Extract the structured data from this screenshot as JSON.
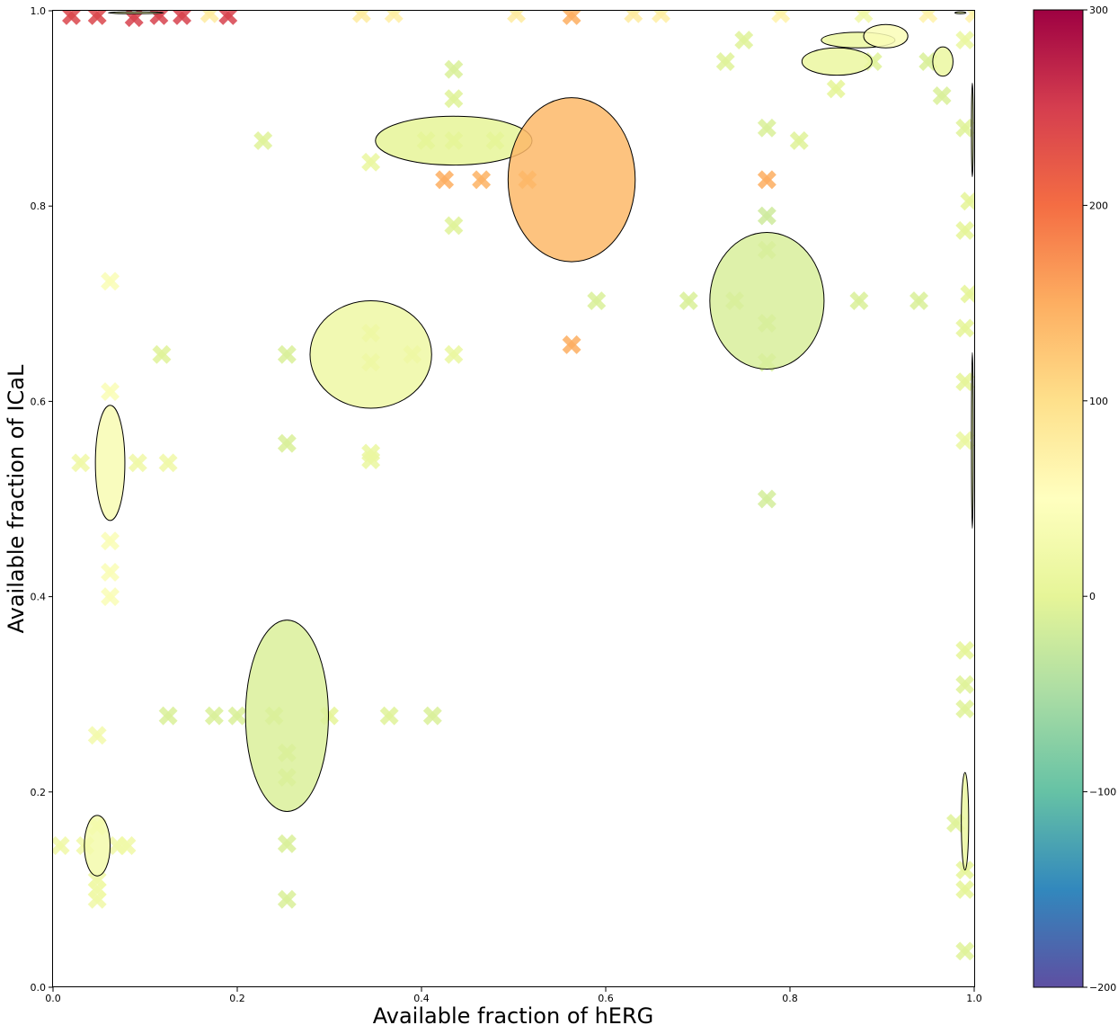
{
  "chart_data": {
    "type": "scatter",
    "xlabel": "Available fraction of hERG",
    "ylabel": "Available fraction of ICaL",
    "xlim": [
      0,
      1
    ],
    "ylim": [
      0,
      1
    ],
    "x_ticks": [
      "0.0",
      "0.2",
      "0.4",
      "0.6",
      "0.8",
      "1.0"
    ],
    "y_ticks": [
      "0.0",
      "0.2",
      "0.4",
      "0.6",
      "0.8",
      "1.0"
    ],
    "grid": false,
    "colorbar": {
      "range": [
        -200,
        300
      ],
      "ticks": [
        "−200",
        "−100",
        "0",
        "100",
        "200",
        "300"
      ],
      "colormap": "Spectral_r"
    },
    "marker": "X",
    "points": [
      {
        "x": 0.02,
        "y": 0.995,
        "v": 240
      },
      {
        "x": 0.048,
        "y": 0.995,
        "v": 240
      },
      {
        "x": 0.088,
        "y": 0.993,
        "v": 245
      },
      {
        "x": 0.115,
        "y": 0.995,
        "v": 245
      },
      {
        "x": 0.14,
        "y": 0.995,
        "v": 245
      },
      {
        "x": 0.19,
        "y": 0.995,
        "v": 245
      },
      {
        "x": 0.17,
        "y": 0.997,
        "v": 80
      },
      {
        "x": 0.335,
        "y": 0.997,
        "v": 80
      },
      {
        "x": 0.37,
        "y": 0.997,
        "v": 75
      },
      {
        "x": 0.503,
        "y": 0.997,
        "v": 80
      },
      {
        "x": 0.563,
        "y": 0.995,
        "v": 150
      },
      {
        "x": 0.63,
        "y": 0.997,
        "v": 80
      },
      {
        "x": 0.66,
        "y": 0.997,
        "v": 75
      },
      {
        "x": 0.79,
        "y": 0.997,
        "v": 70
      },
      {
        "x": 0.88,
        "y": 0.997,
        "v": 20
      },
      {
        "x": 0.95,
        "y": 0.997,
        "v": 70
      },
      {
        "x": 1.0,
        "y": 0.997,
        "v": 70
      },
      {
        "x": 0.435,
        "y": 0.94,
        "v": -10
      },
      {
        "x": 0.435,
        "y": 0.91,
        "v": -5
      },
      {
        "x": 0.405,
        "y": 0.867,
        "v": -5
      },
      {
        "x": 0.435,
        "y": 0.867,
        "v": -5
      },
      {
        "x": 0.48,
        "y": 0.867,
        "v": -5
      },
      {
        "x": 0.228,
        "y": 0.867,
        "v": -5
      },
      {
        "x": 0.345,
        "y": 0.845,
        "v": 10
      },
      {
        "x": 0.425,
        "y": 0.827,
        "v": 150
      },
      {
        "x": 0.465,
        "y": 0.827,
        "v": 145
      },
      {
        "x": 0.515,
        "y": 0.827,
        "v": 145
      },
      {
        "x": 0.435,
        "y": 0.78,
        "v": -5
      },
      {
        "x": 0.563,
        "y": 0.658,
        "v": 150
      },
      {
        "x": 0.59,
        "y": 0.703,
        "v": -10
      },
      {
        "x": 0.69,
        "y": 0.703,
        "v": -10
      },
      {
        "x": 0.74,
        "y": 0.703,
        "v": -10
      },
      {
        "x": 0.775,
        "y": 0.88,
        "v": -10
      },
      {
        "x": 0.775,
        "y": 0.79,
        "v": -20
      },
      {
        "x": 0.775,
        "y": 0.755,
        "v": -15
      },
      {
        "x": 0.775,
        "y": 0.68,
        "v": -15
      },
      {
        "x": 0.775,
        "y": 0.64,
        "v": -15
      },
      {
        "x": 0.775,
        "y": 0.5,
        "v": -15
      },
      {
        "x": 0.775,
        "y": 0.827,
        "v": 150
      },
      {
        "x": 0.81,
        "y": 0.867,
        "v": -5
      },
      {
        "x": 0.875,
        "y": 0.703,
        "v": -10
      },
      {
        "x": 0.94,
        "y": 0.703,
        "v": -10
      },
      {
        "x": 0.73,
        "y": 0.948,
        "v": -5
      },
      {
        "x": 0.75,
        "y": 0.97,
        "v": -5
      },
      {
        "x": 0.85,
        "y": 0.92,
        "v": 0
      },
      {
        "x": 0.89,
        "y": 0.948,
        "v": -5
      },
      {
        "x": 0.95,
        "y": 0.948,
        "v": -10
      },
      {
        "x": 0.965,
        "y": 0.913,
        "v": -10
      },
      {
        "x": 0.99,
        "y": 0.88,
        "v": -5
      },
      {
        "x": 0.99,
        "y": 0.97,
        "v": 10
      },
      {
        "x": 0.995,
        "y": 0.805,
        "v": 0
      },
      {
        "x": 0.99,
        "y": 0.775,
        "v": 0
      },
      {
        "x": 0.995,
        "y": 0.71,
        "v": 0
      },
      {
        "x": 0.99,
        "y": 0.675,
        "v": 0
      },
      {
        "x": 0.99,
        "y": 0.62,
        "v": 0
      },
      {
        "x": 0.99,
        "y": 0.56,
        "v": 10
      },
      {
        "x": 0.062,
        "y": 0.723,
        "v": 40
      },
      {
        "x": 0.062,
        "y": 0.61,
        "v": 40
      },
      {
        "x": 0.03,
        "y": 0.537,
        "v": 20
      },
      {
        "x": 0.092,
        "y": 0.537,
        "v": 20
      },
      {
        "x": 0.118,
        "y": 0.648,
        "v": -5
      },
      {
        "x": 0.125,
        "y": 0.537,
        "v": 20
      },
      {
        "x": 0.062,
        "y": 0.457,
        "v": 40
      },
      {
        "x": 0.062,
        "y": 0.425,
        "v": 40
      },
      {
        "x": 0.062,
        "y": 0.4,
        "v": 40
      },
      {
        "x": 0.254,
        "y": 0.648,
        "v": -10
      },
      {
        "x": 0.345,
        "y": 0.67,
        "v": 10
      },
      {
        "x": 0.345,
        "y": 0.64,
        "v": 10
      },
      {
        "x": 0.39,
        "y": 0.648,
        "v": 10
      },
      {
        "x": 0.435,
        "y": 0.648,
        "v": 10
      },
      {
        "x": 0.254,
        "y": 0.557,
        "v": -10
      },
      {
        "x": 0.345,
        "y": 0.547,
        "v": 10
      },
      {
        "x": 0.345,
        "y": 0.54,
        "v": 10
      },
      {
        "x": 0.048,
        "y": 0.258,
        "v": 25
      },
      {
        "x": 0.125,
        "y": 0.278,
        "v": -10
      },
      {
        "x": 0.175,
        "y": 0.278,
        "v": -10
      },
      {
        "x": 0.2,
        "y": 0.278,
        "v": -10
      },
      {
        "x": 0.24,
        "y": 0.278,
        "v": -10
      },
      {
        "x": 0.3,
        "y": 0.278,
        "v": 0
      },
      {
        "x": 0.365,
        "y": 0.278,
        "v": -5
      },
      {
        "x": 0.412,
        "y": 0.278,
        "v": -10
      },
      {
        "x": 0.254,
        "y": 0.24,
        "v": -10
      },
      {
        "x": 0.254,
        "y": 0.215,
        "v": -10
      },
      {
        "x": 0.254,
        "y": 0.147,
        "v": -10
      },
      {
        "x": 0.254,
        "y": 0.09,
        "v": -10
      },
      {
        "x": 0.008,
        "y": 0.145,
        "v": 20
      },
      {
        "x": 0.035,
        "y": 0.145,
        "v": 20
      },
      {
        "x": 0.07,
        "y": 0.145,
        "v": 20
      },
      {
        "x": 0.08,
        "y": 0.145,
        "v": 20
      },
      {
        "x": 0.048,
        "y": 0.165,
        "v": 30
      },
      {
        "x": 0.048,
        "y": 0.11,
        "v": 20
      },
      {
        "x": 0.048,
        "y": 0.1,
        "v": 20
      },
      {
        "x": 0.048,
        "y": 0.09,
        "v": 20
      },
      {
        "x": 0.99,
        "y": 0.345,
        "v": 0
      },
      {
        "x": 0.99,
        "y": 0.31,
        "v": -5
      },
      {
        "x": 0.99,
        "y": 0.285,
        "v": -5
      },
      {
        "x": 0.98,
        "y": 0.168,
        "v": -5
      },
      {
        "x": 0.99,
        "y": 0.12,
        "v": 0
      },
      {
        "x": 0.99,
        "y": 0.1,
        "v": 0
      },
      {
        "x": 0.99,
        "y": 0.037,
        "v": -5
      }
    ],
    "ellipses": [
      {
        "cx": 0.062,
        "cy": 0.537,
        "rx": 0.016,
        "ry": 0.059,
        "v": 35
      },
      {
        "cx": 0.048,
        "cy": 0.145,
        "rx": 0.014,
        "ry": 0.031,
        "v": 25
      },
      {
        "cx": 0.254,
        "cy": 0.278,
        "rx": 0.045,
        "ry": 0.098,
        "v": -10
      },
      {
        "cx": 0.345,
        "cy": 0.648,
        "rx": 0.066,
        "ry": 0.055,
        "v": 15
      },
      {
        "cx": 0.435,
        "cy": 0.867,
        "rx": 0.085,
        "ry": 0.025,
        "v": 0
      },
      {
        "cx": 0.563,
        "cy": 0.827,
        "rx": 0.069,
        "ry": 0.084,
        "v": 140
      },
      {
        "cx": 0.775,
        "cy": 0.703,
        "rx": 0.062,
        "ry": 0.07,
        "v": -12
      },
      {
        "cx": 0.851,
        "cy": 0.948,
        "rx": 0.038,
        "ry": 0.014,
        "v": 10
      },
      {
        "cx": 0.874,
        "cy": 0.97,
        "rx": 0.04,
        "ry": 0.008,
        "v": 10
      },
      {
        "cx": 0.904,
        "cy": 0.974,
        "rx": 0.024,
        "ry": 0.012,
        "v": 40
      },
      {
        "cx": 0.966,
        "cy": 0.948,
        "rx": 0.011,
        "ry": 0.015,
        "v": 10
      },
      {
        "cx": 0.99,
        "cy": 0.17,
        "rx": 0.004,
        "ry": 0.05,
        "v": 10
      },
      {
        "cx": 0.998,
        "cy": 0.56,
        "rx": 0.001,
        "ry": 0.09,
        "v": 5
      },
      {
        "cx": 0.998,
        "cy": 0.878,
        "rx": 0.001,
        "ry": 0.048,
        "v": 5
      },
      {
        "cx": 0.09,
        "cy": 0.998,
        "rx": 0.03,
        "ry": 0.001,
        "v": 5
      },
      {
        "cx": 0.985,
        "cy": 0.998,
        "rx": 0.006,
        "ry": 0.001,
        "v": 5
      }
    ]
  }
}
